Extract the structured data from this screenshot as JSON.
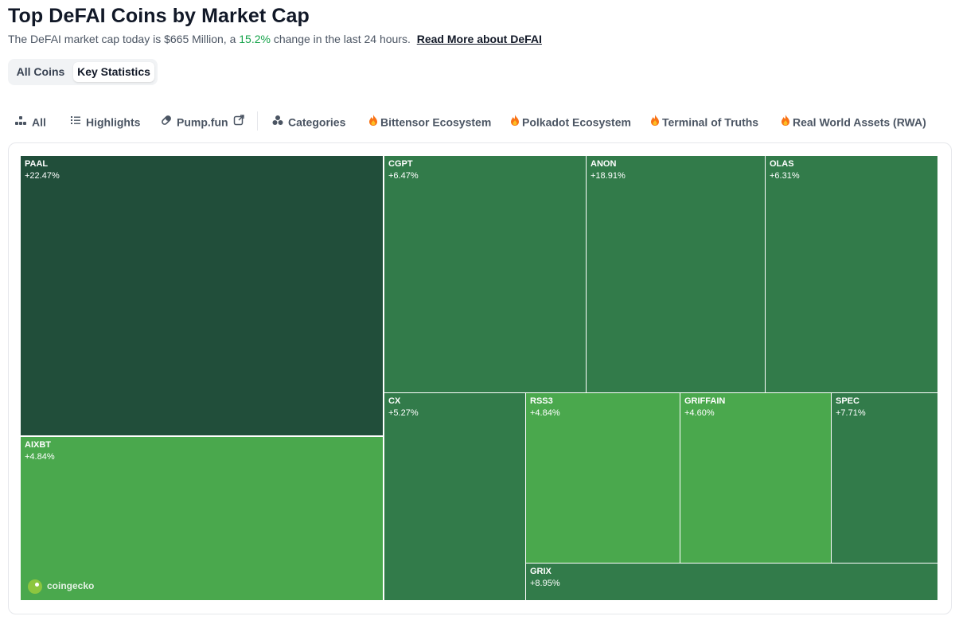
{
  "header": {
    "title": "Top DeFAI Coins by Market Cap",
    "subtitle_prefix": "The DeFAI market cap today is $665 Million, a",
    "subtitle_pct": "15.2%",
    "subtitle_suffix": "change in the last 24 hours.",
    "read_more": "Read More about DeFAI"
  },
  "view_toggle": {
    "options": [
      "All Coins",
      "Key Statistics"
    ],
    "selected": "Key Statistics"
  },
  "filters": [
    {
      "label": "All",
      "icon": "all-icon"
    },
    {
      "label": "Highlights",
      "icon": "list-icon"
    },
    {
      "label": "Pump.fun",
      "icon": "pill-icon"
    },
    {
      "label": "Categories",
      "icon": "categories-icon"
    },
    {
      "label": "Bittensor Ecosystem",
      "icon": "fire-icon"
    },
    {
      "label": "Polkadot Ecosystem",
      "icon": "fire-icon"
    },
    {
      "label": "Terminal of Truths",
      "icon": "fire-icon"
    },
    {
      "label": "Real World Assets (RWA)",
      "icon": "fire-icon"
    }
  ],
  "treemap": {
    "colors": {
      "dark": "#214e3a",
      "mid": "#2f7a4b",
      "bright": "#4aa84d"
    },
    "tiles": [
      {
        "symbol": "PAAL",
        "change": "+22.47%",
        "color": "#214e3a"
      },
      {
        "symbol": "AIXBT",
        "change": "+4.84%",
        "color": "#4aa84d"
      },
      {
        "symbol": "CGPT",
        "change": "+6.47%",
        "color": "#327b4a"
      },
      {
        "symbol": "ANON",
        "change": "+18.91%",
        "color": "#327b4a"
      },
      {
        "symbol": "OLAS",
        "change": "+6.31%",
        "color": "#327b4a"
      },
      {
        "symbol": "CX",
        "change": "+5.27%",
        "color": "#327b4a"
      },
      {
        "symbol": "RSS3",
        "change": "+4.84%",
        "color": "#4aa84d"
      },
      {
        "symbol": "GRIFFAIN",
        "change": "+4.60%",
        "color": "#4aa84d"
      },
      {
        "symbol": "SPEC",
        "change": "+7.71%",
        "color": "#327b4a"
      },
      {
        "symbol": "GRIX",
        "change": "+8.95%",
        "color": "#327b4a"
      }
    ],
    "watermark": "coingecko"
  }
}
